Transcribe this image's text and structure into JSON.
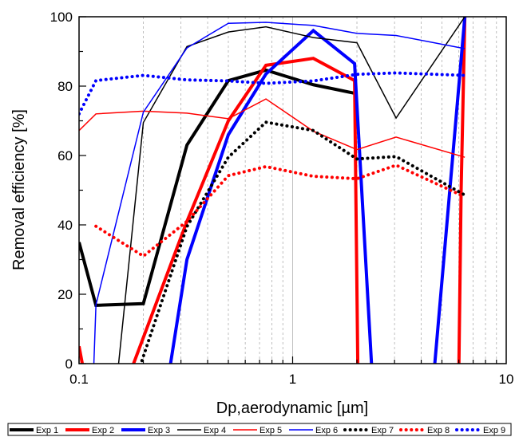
{
  "chart_data": {
    "type": "line",
    "xlabel": "Dp,aerodynamic [µm]",
    "ylabel": "Removal efficiency [%]",
    "xscale": "log",
    "xlim": [
      0.1,
      10
    ],
    "ylim": [
      0,
      100
    ],
    "x_tick_labels": [
      "0.1",
      "1",
      "10"
    ],
    "y_tick_labels": [
      "0",
      "20",
      "40",
      "60",
      "80",
      "100"
    ],
    "grid": "vertical minor gridlines",
    "legend_position": "bottom",
    "series": [
      {
        "name": "Exp 1",
        "color": "#000000",
        "width": 4,
        "dash": "solid",
        "x": [
          0.1,
          0.12,
          0.2,
          0.32,
          0.5,
          0.75,
          1.25,
          2
        ],
        "y": [
          35,
          16.8,
          17.3,
          63,
          81.6,
          84.6,
          80.4,
          77.8
        ]
      },
      {
        "name": "Exp 2",
        "color": "#ff0000",
        "width": 4,
        "dash": "solid",
        "x": [
          0.1,
          0.105,
          0.175,
          0.32,
          0.5,
          0.75,
          1.25,
          1.95,
          2.02,
          6,
          6.15,
          6.4
        ],
        "y": [
          5,
          -2,
          -2,
          41,
          70,
          86,
          88,
          81.6,
          -2,
          -2,
          50,
          100
        ]
      },
      {
        "name": "Exp 3",
        "color": "#0000ff",
        "width": 4,
        "dash": "solid",
        "x": [
          0.265,
          0.32,
          0.5,
          0.75,
          1.25,
          1.95,
          2.35,
          4.6,
          6.4
        ],
        "y": [
          -2,
          30,
          66,
          83.5,
          96,
          86.5,
          -2,
          -2,
          100
        ]
      },
      {
        "name": "Exp 4",
        "color": "#000000",
        "width": 1.5,
        "dash": "solid",
        "x": [
          0.152,
          0.2,
          0.32,
          0.5,
          0.75,
          1.25,
          2,
          3.05,
          6.4
        ],
        "y": [
          -2,
          69.5,
          91.4,
          95.6,
          97.1,
          94,
          92.5,
          70.8,
          100
        ]
      },
      {
        "name": "Exp 5",
        "color": "#ff0000",
        "width": 1.5,
        "dash": "solid",
        "x": [
          0.1,
          0.12,
          0.2,
          0.32,
          0.5,
          0.75,
          1.25,
          2,
          3.05,
          6.4
        ],
        "y": [
          67.2,
          72,
          72.8,
          72.2,
          70.6,
          76.3,
          67,
          61.7,
          65.3,
          59.5
        ]
      },
      {
        "name": "Exp 6",
        "color": "#0000ff",
        "width": 1.5,
        "dash": "solid",
        "x": [
          0.117,
          0.12,
          0.2,
          0.32,
          0.5,
          0.75,
          1.25,
          2,
          3.05,
          6.4
        ],
        "y": [
          -2,
          17,
          72.5,
          91,
          98.1,
          98.4,
          97.5,
          95.2,
          94.6,
          90.8
        ]
      },
      {
        "name": "Exp 7",
        "color": "#000000",
        "width": 4,
        "dash": "dot",
        "x": [
          0.19,
          0.32,
          0.5,
          0.75,
          1.25,
          2,
          3.05,
          6.4
        ],
        "y": [
          -2,
          39.5,
          59.5,
          69.6,
          67.2,
          59,
          59.7,
          48.6
        ]
      },
      {
        "name": "Exp 8",
        "color": "#ff0000",
        "width": 4,
        "dash": "dot",
        "x": [
          0.12,
          0.2,
          0.32,
          0.5,
          0.75,
          1.25,
          2,
          3.05,
          6.4
        ],
        "y": [
          39.6,
          31,
          41,
          54.2,
          56.8,
          54,
          53.3,
          57.2,
          48.1
        ]
      },
      {
        "name": "Exp 9",
        "color": "#0000ff",
        "width": 4,
        "dash": "dot",
        "x": [
          0.1,
          0.12,
          0.2,
          0.32,
          0.5,
          0.75,
          1.25,
          2,
          3.05,
          6.4
        ],
        "y": [
          72,
          81.6,
          83.1,
          81.8,
          81.5,
          80.8,
          81.5,
          83.4,
          83.8,
          83.1
        ]
      }
    ]
  }
}
